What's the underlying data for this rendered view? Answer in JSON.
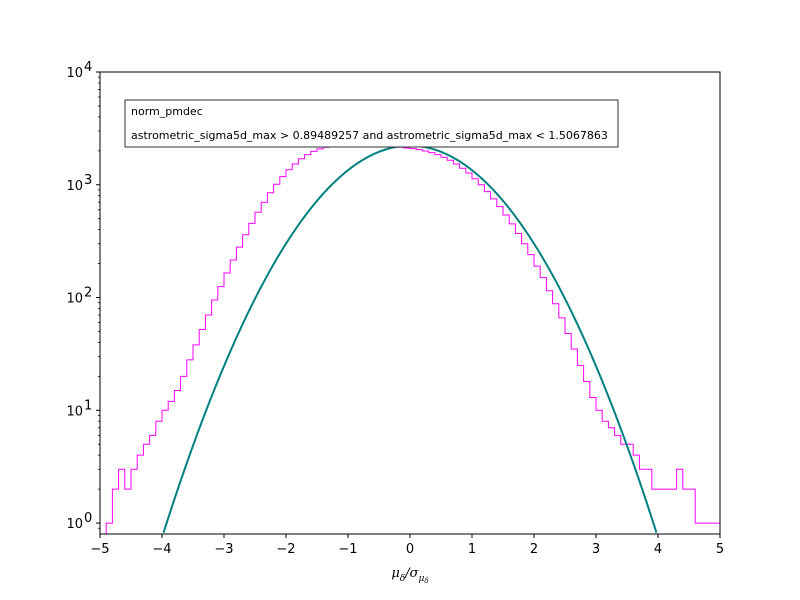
{
  "chart_data": {
    "type": "line",
    "title": "",
    "xlabel": "μ_δ/σ_μ_δ",
    "ylabel": "",
    "xlim": [
      -5,
      5
    ],
    "ylim": [
      0.8,
      10000
    ],
    "yscale": "log",
    "x_ticks": [
      -5,
      -4,
      -3,
      -2,
      -1,
      0,
      1,
      2,
      3,
      4,
      5
    ],
    "x_tick_labels": [
      "−5",
      "−4",
      "−3",
      "−2",
      "−1",
      "0",
      "1",
      "2",
      "3",
      "4",
      "5"
    ],
    "y_ticks": [
      1,
      10,
      100,
      1000,
      10000
    ],
    "y_tick_labels": [
      {
        "base": "10",
        "exp": "0"
      },
      {
        "base": "10",
        "exp": "1"
      },
      {
        "base": "10",
        "exp": "2"
      },
      {
        "base": "10",
        "exp": "3"
      },
      {
        "base": "10",
        "exp": "4"
      }
    ],
    "grid": false,
    "legend": {
      "placement": "upper-left",
      "lines": [
        "norm_pmdec",
        "astrometric_sigma5d_max > 0.89489257 and astrometric_sigma5d_max < 1.5067863"
      ]
    },
    "series": [
      {
        "kind": "histogram-step",
        "color": "#ff00ff",
        "x": [
          -4.85,
          -4.75,
          -4.65,
          -4.55,
          -4.45,
          -4.35,
          -4.25,
          -4.15,
          -4.05,
          -3.95,
          -3.85,
          -3.75,
          -3.65,
          -3.55,
          -3.45,
          -3.35,
          -3.25,
          -3.15,
          -3.05,
          -2.95,
          -2.85,
          -2.75,
          -2.65,
          -2.55,
          -2.45,
          -2.35,
          -2.25,
          -2.15,
          -2.05,
          -1.95,
          -1.85,
          -1.75,
          -1.65,
          -1.55,
          -1.45,
          -1.35,
          -1.25,
          -1.15,
          -1.05,
          -0.95,
          -0.85,
          -0.75,
          -0.65,
          -0.55,
          -0.45,
          -0.35,
          -0.25,
          -0.15,
          -0.05,
          0.05,
          0.15,
          0.25,
          0.35,
          0.45,
          0.55,
          0.65,
          0.75,
          0.85,
          0.95,
          1.05,
          1.15,
          1.25,
          1.35,
          1.45,
          1.55,
          1.65,
          1.75,
          1.85,
          1.95,
          2.05,
          2.15,
          2.25,
          2.35,
          2.45,
          2.55,
          2.65,
          2.75,
          2.85,
          2.95,
          3.05,
          3.15,
          3.25,
          3.35,
          3.45,
          3.55,
          3.65,
          3.75,
          3.85,
          3.95,
          4.05,
          4.15,
          4.25,
          4.35,
          4.45,
          4.55,
          4.65,
          4.75,
          4.85,
          4.95
        ],
        "y": [
          1,
          2,
          3,
          2,
          3,
          4,
          5,
          6,
          8,
          10,
          12,
          15,
          20,
          28,
          38,
          52,
          70,
          95,
          125,
          165,
          215,
          280,
          360,
          455,
          570,
          700,
          850,
          1010,
          1180,
          1360,
          1530,
          1700,
          1850,
          1980,
          2080,
          2150,
          2195,
          2215,
          2225,
          2230,
          2228,
          2222,
          2215,
          2205,
          2195,
          2185,
          2170,
          2150,
          2120,
          2090,
          2050,
          1995,
          1930,
          1850,
          1755,
          1650,
          1530,
          1400,
          1270,
          1130,
          1000,
          870,
          750,
          640,
          540,
          450,
          370,
          300,
          240,
          190,
          150,
          115,
          88,
          66,
          48,
          35,
          25,
          18,
          13,
          10,
          8,
          7,
          6,
          5,
          5,
          4,
          3,
          3,
          2,
          2,
          2,
          2,
          3,
          2,
          2,
          1,
          1,
          1,
          1
        ]
      },
      {
        "kind": "gaussian-fit",
        "color": "#008080",
        "amplitude": 2220,
        "mean": 0,
        "sigma": 1.0
      }
    ]
  }
}
